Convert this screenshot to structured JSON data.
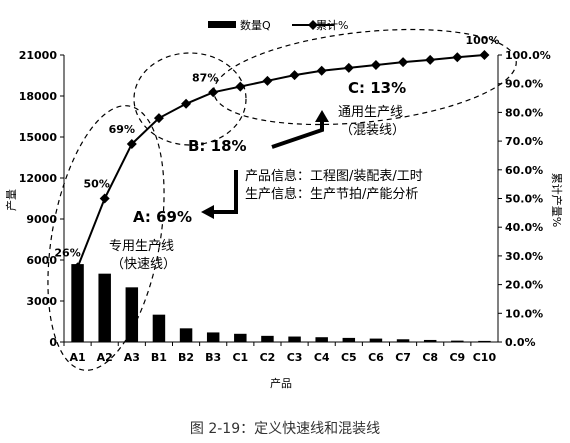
{
  "caption": "图 2-19：定义快速线和混装线",
  "chart_data": {
    "type": "bar+line",
    "categories": [
      "A1",
      "A2",
      "A3",
      "B1",
      "B2",
      "B3",
      "C1",
      "C2",
      "C3",
      "C4",
      "C5",
      "C6",
      "C7",
      "C8",
      "C9",
      "C10"
    ],
    "series": [
      {
        "name": "数量Q",
        "type": "bar",
        "axis": "left",
        "values": [
          5700,
          5000,
          4000,
          2000,
          1000,
          700,
          600,
          450,
          400,
          350,
          300,
          250,
          200,
          150,
          100,
          80
        ]
      },
      {
        "name": "累计%",
        "type": "line",
        "axis": "right",
        "values": [
          26,
          50,
          69,
          78,
          83,
          87,
          89,
          91,
          93,
          94.5,
          95.5,
          96.5,
          97.5,
          98.3,
          99.2,
          100
        ]
      }
    ],
    "xlabel": "产品",
    "ylabel_left": "产量",
    "ylabel_right": "累计产量%",
    "ylim_left": [
      0,
      21000
    ],
    "yticks_left": [
      "0",
      "3000",
      "6000",
      "9000",
      "12000",
      "15000",
      "18000",
      "21000"
    ],
    "ylim_right": [
      0,
      100
    ],
    "yticks_right": [
      "0.0%",
      "10.0%",
      "20.0%",
      "30.0%",
      "40.0%",
      "50.0%",
      "60.0%",
      "70.0%",
      "80.0%",
      "90.0%",
      "100.0%"
    ],
    "point_labels": [
      "26%",
      "50%",
      "69%",
      "87%",
      "100%"
    ],
    "grid": false,
    "legend_position": "top",
    "colors": {
      "bar": "#000000",
      "line": "#000000"
    },
    "annotations": {
      "zone_a": "A: 69%",
      "zone_b": "B: 18%",
      "zone_c": "C: 13%",
      "fast_line_1": "专用生产线",
      "fast_line_2": "（快速线）",
      "mixed_line_1": "通用生产线",
      "mixed_line_2": "（混装线）",
      "info_product": "产品信息：工程图/装配表/工时",
      "info_production": "生产信息：生产节拍/产能分析"
    }
  }
}
